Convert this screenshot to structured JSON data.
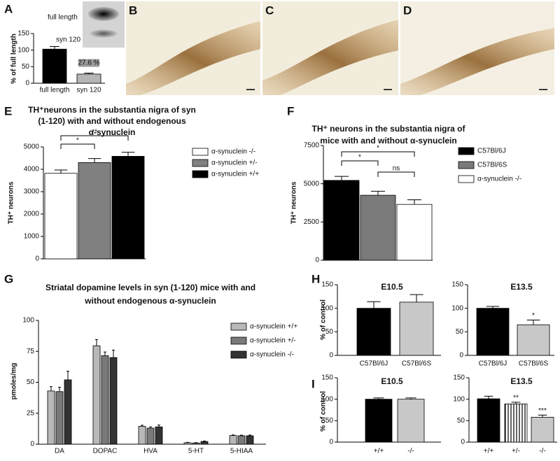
{
  "figure": {
    "panel_labels": [
      "A",
      "B",
      "C",
      "D",
      "E",
      "F",
      "G",
      "H",
      "I"
    ]
  },
  "chart_data": [
    {
      "type": "bar",
      "y_label": "% of full length",
      "categories": [
        "full length",
        "syn 120"
      ],
      "values": [
        103,
        27.6
      ],
      "errors": [
        8,
        3
      ],
      "value_labels": [
        null,
        "27.6 %"
      ],
      "colors": [
        "#000000",
        "#b5b5b5"
      ],
      "ylim": [
        0,
        150
      ],
      "yticks": [
        0,
        50,
        100,
        150
      ]
    },
    {
      "type": "bar",
      "title": [
        "TH⁺neurons in the substantia nigra of syn",
        "(1-120) with and without endogenous",
        "α-synuclein"
      ],
      "y_label": "TH⁺ neurons",
      "series": [
        {
          "name": "α-synuclein -/-",
          "color": "#ffffff",
          "values": [
            3820
          ],
          "errors": [
            150
          ]
        },
        {
          "name": "α-synuclein +/-",
          "color": "#808080",
          "values": [
            4300
          ],
          "errors": [
            180
          ]
        },
        {
          "name": "α-synuclein +/+",
          "color": "#000000",
          "values": [
            4580
          ],
          "errors": [
            180
          ]
        }
      ],
      "ylim": [
        0,
        5000
      ],
      "yticks": [
        0,
        1000,
        2000,
        3000,
        4000,
        5000
      ],
      "annotations": [
        "*",
        "**"
      ]
    },
    {
      "type": "bar",
      "title": [
        "TH⁺ neurons in the substantia nigra of",
        "mice with and without α-synuclein"
      ],
      "y_label": "TH⁺ neurons",
      "series": [
        {
          "name": "C57Bl/6J",
          "color": "#000000",
          "values": [
            5220
          ],
          "errors": [
            260
          ]
        },
        {
          "name": "C57Bl/6S",
          "color": "#7a7a7a",
          "values": [
            4250
          ],
          "errors": [
            260
          ]
        },
        {
          "name": "α-synuclein -/-",
          "color": "#ffffff",
          "values": [
            3650
          ],
          "errors": [
            300
          ]
        }
      ],
      "ylim": [
        0,
        7500
      ],
      "yticks": [
        0,
        2500,
        5000,
        7500
      ],
      "annotations": [
        "*",
        "ns",
        "*"
      ]
    },
    {
      "type": "bar",
      "title": [
        "Striatal dopamine levels in syn (1-120) mice with and",
        "without endogenous α-synuclein"
      ],
      "y_label": "pmoles/mg",
      "categories": [
        "DA",
        "DOPAC",
        "HVA",
        "5-HT",
        "5-HIAA"
      ],
      "series": [
        {
          "name": "α-synuclein +/+",
          "color": "#b8b8b8",
          "values": [
            43,
            79.5,
            14.5,
            1.2,
            7
          ],
          "errors": [
            3.5,
            5,
            0.8,
            0.3,
            0.5
          ]
        },
        {
          "name": "α-synuclein +/-",
          "color": "#7a7a7a",
          "values": [
            42.5,
            71.5,
            13,
            1,
            6.8
          ],
          "errors": [
            3.5,
            3,
            1,
            0.3,
            0.5
          ]
        },
        {
          "name": "α-synuclein -/-",
          "color": "#333333",
          "values": [
            52,
            70,
            14,
            2.2,
            6.8
          ],
          "errors": [
            7,
            6,
            1.5,
            0.4,
            0.6
          ]
        }
      ],
      "ylim": [
        0,
        100
      ],
      "yticks": [
        0,
        25,
        50,
        75,
        100
      ]
    },
    {
      "type": "bar",
      "title": "E10.5",
      "y_label": "% of control",
      "categories": [
        "C57Bl/6J",
        "C57Bl/6S"
      ],
      "values": [
        100,
        113
      ],
      "errors": [
        14,
        16
      ],
      "colors": [
        "#000000",
        "#c8c8c8"
      ],
      "ylim": [
        0,
        150
      ],
      "yticks": [
        0,
        50,
        100,
        150
      ]
    },
    {
      "type": "bar",
      "title": "E13.5",
      "categories": [
        "C57Bl/6J",
        "C57Bl/6S"
      ],
      "values": [
        100,
        65
      ],
      "errors": [
        4,
        10
      ],
      "colors": [
        "#000000",
        "#c8c8c8"
      ],
      "annotations": [
        null,
        "*"
      ],
      "ylim": [
        0,
        150
      ],
      "yticks": [
        0,
        50,
        100,
        150
      ]
    },
    {
      "type": "bar",
      "title": "E10.5",
      "y_label": "% of control",
      "categories": [
        "+/+",
        "-/-"
      ],
      "values": [
        100,
        100
      ],
      "errors": [
        3,
        3
      ],
      "colors": [
        "#000000",
        "#c8c8c8"
      ],
      "ylim": [
        0,
        150
      ],
      "yticks": [
        0,
        50,
        100,
        150
      ]
    },
    {
      "type": "bar",
      "title": "E13.5",
      "categories": [
        "+/+",
        "+/-",
        "-/-"
      ],
      "values": [
        101,
        89,
        58
      ],
      "errors": [
        6,
        4,
        5
      ],
      "colors": [
        "#000000",
        "#ffffff",
        "#c8c8c8"
      ],
      "patterns": [
        null,
        "vertical-lines",
        null
      ],
      "annotations": [
        null,
        "**",
        "***"
      ],
      "ylim": [
        0,
        150
      ],
      "yticks": [
        0,
        50,
        100,
        150
      ]
    }
  ]
}
